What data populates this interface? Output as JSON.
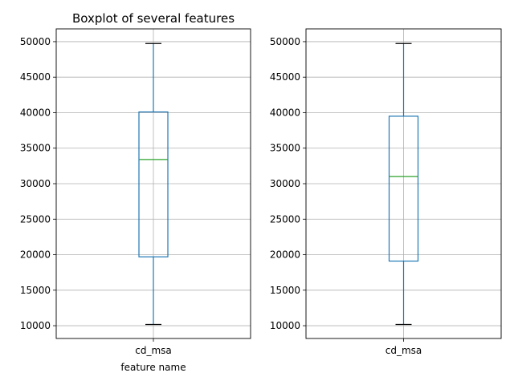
{
  "chart_data": [
    {
      "type": "box",
      "title": "Boxplot of several features",
      "xlabel": "feature name",
      "ylabel": "",
      "categories": [
        "cd_msa"
      ],
      "ylim": [
        8200,
        51800
      ],
      "yticks": [
        10000,
        15000,
        20000,
        25000,
        30000,
        35000,
        40000,
        45000,
        50000
      ],
      "grid": true,
      "boxes": [
        {
          "category": "cd_msa",
          "whisker_low": 10180,
          "q1": 19700,
          "median": 33400,
          "q3": 40100,
          "whisker_high": 49740
        }
      ],
      "colors": {
        "box": "#1f77b4",
        "median": "#2ca02c",
        "whisker_cap": "#000000",
        "grid": "#b0b0b0"
      }
    },
    {
      "type": "box",
      "title": "",
      "xlabel": "",
      "ylabel": "",
      "categories": [
        "cd_msa"
      ],
      "ylim": [
        8200,
        51800
      ],
      "yticks": [
        10000,
        15000,
        20000,
        25000,
        30000,
        35000,
        40000,
        45000,
        50000
      ],
      "grid": true,
      "boxes": [
        {
          "category": "cd_msa",
          "whisker_low": 10180,
          "q1": 19100,
          "median": 31000,
          "q3": 39500,
          "whisker_high": 49740
        }
      ],
      "colors": {
        "box": "#1f77b4",
        "median": "#2ca02c",
        "whisker_cap": "#000000",
        "grid": "#b0b0b0"
      }
    }
  ]
}
